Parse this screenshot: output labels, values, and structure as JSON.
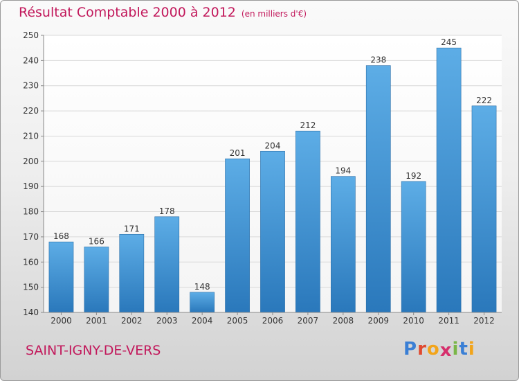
{
  "title": "Résultat Comptable 2000 à 2012",
  "subtitle": "(en milliers d'€)",
  "commune": "SAINT-IGNY-DE-VERS",
  "logo": {
    "letters": [
      "P",
      "r",
      "o",
      "x",
      "i",
      "t",
      "i"
    ],
    "colors": [
      "#3a7fd5",
      "#e0492f",
      "#f2a41a",
      "#d62f6c",
      "#7ab648",
      "#3a7fd5",
      "#f2a41a"
    ]
  },
  "colors": {
    "bar_top": "#5dade6",
    "bar_bottom": "#2a78bb",
    "title": "#c2185b"
  },
  "chart_data": {
    "type": "bar",
    "categories": [
      "2000",
      "2001",
      "2002",
      "2003",
      "2004",
      "2005",
      "2006",
      "2007",
      "2008",
      "2009",
      "2010",
      "2011",
      "2012"
    ],
    "values": [
      168,
      166,
      171,
      178,
      148,
      201,
      204,
      212,
      194,
      238,
      192,
      245,
      222
    ],
    "ylim": [
      140,
      250
    ],
    "yticks": [
      140,
      150,
      160,
      170,
      180,
      190,
      200,
      210,
      220,
      230,
      240,
      250
    ],
    "grid": true,
    "data_labels": true
  }
}
